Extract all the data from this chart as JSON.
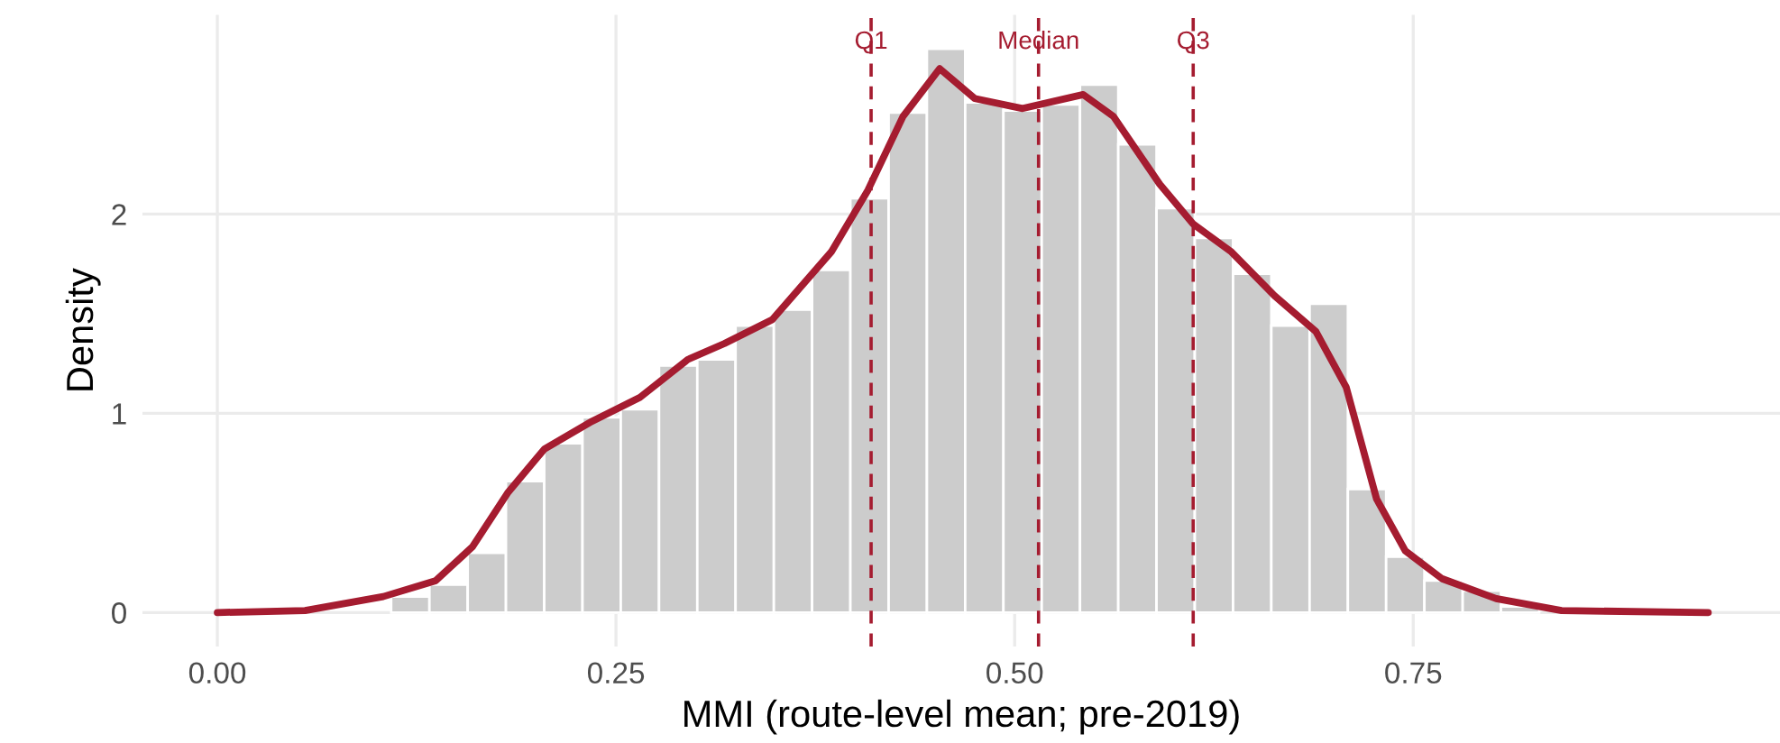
{
  "chart_data": {
    "type": "histogram",
    "xlabel": "MMI (route-level mean; pre-2019)",
    "ylabel": "Density",
    "bins": [
      0.109,
      0.133,
      0.157,
      0.181,
      0.205,
      0.229,
      0.253,
      0.277,
      0.301,
      0.325,
      0.349,
      0.373,
      0.397,
      0.421,
      0.445,
      0.469,
      0.493,
      0.517,
      0.541,
      0.565,
      0.589,
      0.613,
      0.637,
      0.661,
      0.685,
      0.709,
      0.733,
      0.757,
      0.781,
      0.805,
      0.829
    ],
    "values": [
      0.08,
      0.14,
      0.3,
      0.66,
      0.85,
      0.98,
      1.02,
      1.24,
      1.27,
      1.44,
      1.52,
      1.72,
      2.08,
      2.51,
      2.83,
      2.56,
      2.52,
      2.55,
      2.65,
      2.35,
      2.03,
      1.88,
      1.7,
      1.44,
      1.55,
      0.62,
      0.28,
      0.16,
      0.11,
      0.03
    ],
    "color": "#cccccc",
    "series": [
      {
        "type": "line",
        "color": "#a51c30",
        "x": [
          0.0,
          0.055,
          0.104,
          0.137,
          0.16,
          0.182,
          0.205,
          0.235,
          0.265,
          0.295,
          0.318,
          0.348,
          0.385,
          0.408,
          0.43,
          0.453,
          0.475,
          0.505,
          0.543,
          0.562,
          0.591,
          0.612,
          0.636,
          0.663,
          0.689,
          0.708,
          0.727,
          0.745,
          0.768,
          0.802,
          0.843,
          0.935
        ],
        "values": [
          0.0,
          0.01,
          0.08,
          0.16,
          0.33,
          0.6,
          0.82,
          0.96,
          1.08,
          1.27,
          1.35,
          1.47,
          1.81,
          2.12,
          2.49,
          2.73,
          2.58,
          2.53,
          2.6,
          2.49,
          2.15,
          1.95,
          1.81,
          1.59,
          1.41,
          1.13,
          0.57,
          0.31,
          0.17,
          0.07,
          0.01,
          0.0
        ]
      }
    ],
    "ref_lines": [
      {
        "axis": "x",
        "value": 0.41,
        "label": "Q1",
        "color": "#a51c30",
        "line_style": "dashed"
      },
      {
        "axis": "x",
        "value": 0.515,
        "label": "Median",
        "color": "#a51c30",
        "line_style": "dashed"
      },
      {
        "axis": "x",
        "value": 0.612,
        "label": "Q3",
        "color": "#a51c30",
        "line_style": "dashed"
      }
    ],
    "xlim": [
      -0.047,
      0.98
    ],
    "ylim": [
      -0.17,
      3.0
    ],
    "xticks": [
      {
        "value": 0,
        "label": "0.00"
      },
      {
        "value": 0.25,
        "label": "0.25"
      },
      {
        "value": 0.5,
        "label": "0.50"
      },
      {
        "value": 0.75,
        "label": "0.75"
      }
    ],
    "yticks": [
      0,
      1,
      2
    ],
    "grid": true
  }
}
